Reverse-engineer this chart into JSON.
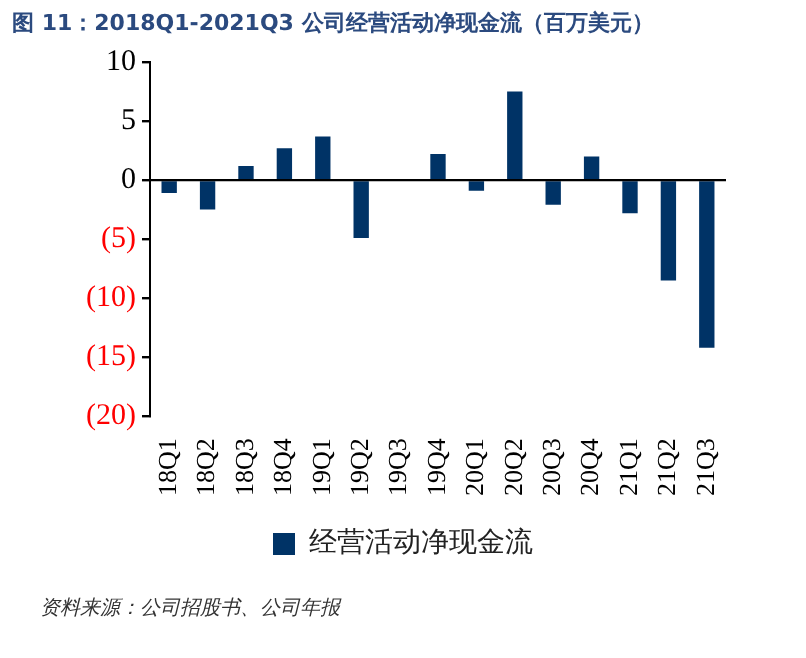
{
  "chart_data": {
    "type": "bar",
    "title": "图 11：2018Q1-2021Q3 公司经营活动净现金流（百万美元）",
    "categories": [
      "18Q1",
      "18Q2",
      "18Q3",
      "18Q4",
      "19Q1",
      "19Q2",
      "19Q3",
      "19Q4",
      "20Q1",
      "20Q2",
      "20Q3",
      "20Q4",
      "21Q1",
      "21Q2",
      "21Q3"
    ],
    "series": [
      {
        "name": "经营活动净现金流",
        "color": "#003366",
        "values": [
          -1.1,
          -2.5,
          1.2,
          2.7,
          3.7,
          -4.9,
          0.1,
          2.2,
          -0.9,
          7.5,
          -2.1,
          2.0,
          -2.8,
          -8.5,
          -14.2
        ]
      }
    ],
    "ylim": [
      -20,
      10
    ],
    "yticks": [
      {
        "value": -20,
        "label": "(20)"
      },
      {
        "value": -15,
        "label": "(15)"
      },
      {
        "value": -10,
        "label": "(10)"
      },
      {
        "value": -5,
        "label": "(5)"
      },
      0,
      5,
      10
    ],
    "grid": false,
    "ref_lines": [
      {
        "axis": "y",
        "value": 0,
        "color": "#000000"
      }
    ],
    "legend": "bottom",
    "annotations": [
      "资料来源：公司招股书、公司年报"
    ]
  }
}
